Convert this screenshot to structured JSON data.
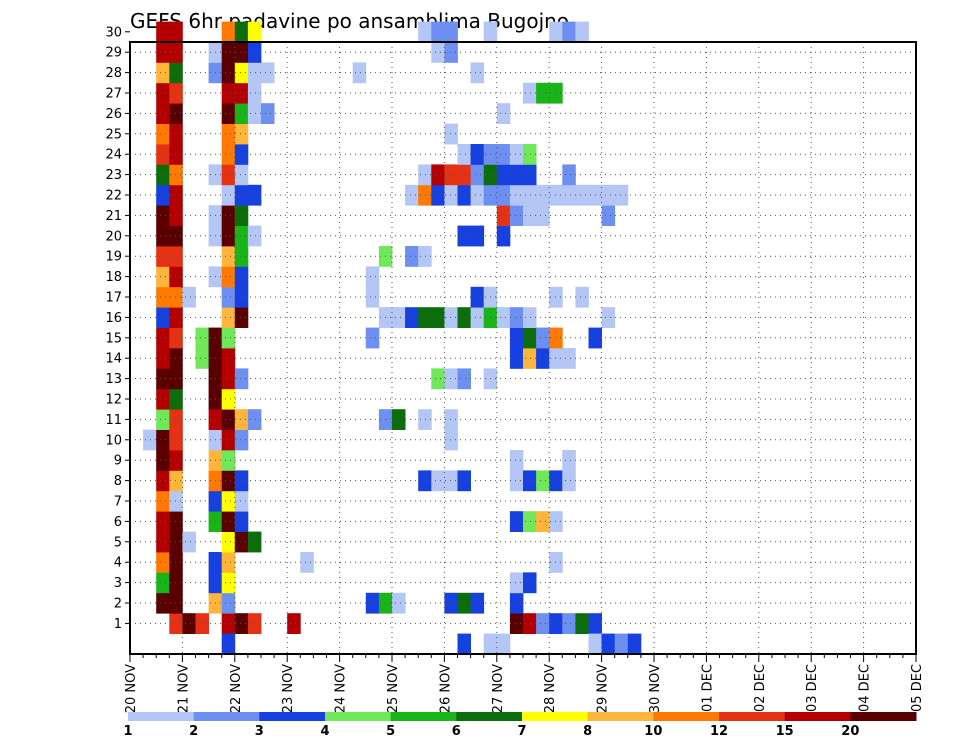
{
  "chart_data": {
    "type": "heatmap",
    "title": "GEFS 6hr padavine po ansamblima Bugojno",
    "x_tick_labels": [
      "20 NOV",
      "21 NOV",
      "22 NOV",
      "23 NOV",
      "24 NOV",
      "25 NOV",
      "26 NOV",
      "27 NOV",
      "28 NOV",
      "29 NOV",
      "30 NOV",
      "01 DEC",
      "02 DEC",
      "03 DEC",
      "04 DEC",
      "05 DEC"
    ],
    "y_tick_labels": [
      "1",
      "2",
      "3",
      "4",
      "5",
      "6",
      "7",
      "8",
      "9",
      "10",
      "11",
      "12",
      "13",
      "14",
      "15",
      "16",
      "17",
      "18",
      "19",
      "20",
      "21",
      "22",
      "23",
      "24",
      "25",
      "26",
      "27",
      "28",
      "29",
      "30"
    ],
    "x_range": [
      "20 NOV",
      "05 DEC"
    ],
    "y_range": [
      0,
      30
    ],
    "grid": true,
    "legend": {
      "placement": "bottom",
      "tick_labels": [
        "1",
        "2",
        "3",
        "4",
        "5",
        "6",
        "7",
        "8",
        "10",
        "12",
        "15",
        "20"
      ],
      "colors": [
        "#b4c6f5",
        "#6e8ff2",
        "#1640e0",
        "#6fe85a",
        "#18b418",
        "#0b6e0b",
        "#ffff00",
        "#ffb43c",
        "#ff7800",
        "#e63214",
        "#b40000",
        "#5a0000"
      ]
    },
    "series": [
      {
        "member": 1,
        "cells": [
          [
            3,
            10
          ],
          [
            4,
            12
          ],
          [
            5,
            10
          ],
          [
            7,
            11
          ],
          [
            8,
            12
          ],
          [
            9,
            10
          ],
          [
            12,
            11
          ],
          [
            29,
            12
          ],
          [
            30,
            11
          ],
          [
            31,
            2
          ],
          [
            32,
            3
          ],
          [
            33,
            2
          ],
          [
            34,
            6
          ],
          [
            35,
            3
          ]
        ]
      },
      {
        "member": 2,
        "cells": [
          [
            2,
            12
          ],
          [
            3,
            12
          ],
          [
            6,
            8
          ],
          [
            7,
            2
          ],
          [
            18,
            3
          ],
          [
            19,
            5
          ],
          [
            20,
            1
          ],
          [
            24,
            3
          ],
          [
            25,
            6
          ],
          [
            26,
            3
          ],
          [
            29,
            3
          ]
        ]
      },
      {
        "member": 3,
        "cells": [
          [
            2,
            5
          ],
          [
            3,
            12
          ],
          [
            6,
            3
          ],
          [
            7,
            7
          ],
          [
            29,
            1
          ],
          [
            30,
            3
          ]
        ]
      },
      {
        "member": 4,
        "cells": [
          [
            2,
            9
          ],
          [
            3,
            12
          ],
          [
            6,
            3
          ],
          [
            7,
            8
          ],
          [
            13,
            1
          ],
          [
            32,
            1
          ]
        ]
      },
      {
        "member": 5,
        "cells": [
          [
            2,
            11
          ],
          [
            3,
            12
          ],
          [
            4,
            1
          ],
          [
            7,
            7
          ],
          [
            8,
            12
          ],
          [
            9,
            6
          ]
        ]
      },
      {
        "member": 6,
        "cells": [
          [
            2,
            11
          ],
          [
            3,
            12
          ],
          [
            6,
            5
          ],
          [
            7,
            12
          ],
          [
            8,
            3
          ],
          [
            29,
            3
          ],
          [
            30,
            4
          ],
          [
            31,
            8
          ],
          [
            32,
            1
          ]
        ]
      },
      {
        "member": 7,
        "cells": [
          [
            2,
            9
          ],
          [
            3,
            1
          ],
          [
            6,
            3
          ],
          [
            7,
            7
          ],
          [
            8,
            1
          ]
        ]
      },
      {
        "member": 8,
        "cells": [
          [
            2,
            11
          ],
          [
            3,
            8
          ],
          [
            6,
            9
          ],
          [
            7,
            12
          ],
          [
            8,
            3
          ],
          [
            22,
            3
          ],
          [
            23,
            1
          ],
          [
            24,
            1
          ],
          [
            25,
            3
          ],
          [
            29,
            1
          ],
          [
            30,
            3
          ],
          [
            31,
            4
          ],
          [
            32,
            3
          ],
          [
            33,
            1
          ]
        ]
      },
      {
        "member": 9,
        "cells": [
          [
            2,
            12
          ],
          [
            3,
            11
          ],
          [
            6,
            8
          ],
          [
            7,
            4
          ],
          [
            29,
            1
          ],
          [
            33,
            1
          ]
        ]
      },
      {
        "member": 10,
        "cells": [
          [
            1,
            1
          ],
          [
            2,
            12
          ],
          [
            3,
            10
          ],
          [
            6,
            1
          ],
          [
            7,
            11
          ],
          [
            8,
            2
          ],
          [
            24,
            1
          ]
        ]
      },
      {
        "member": 11,
        "cells": [
          [
            2,
            4
          ],
          [
            3,
            10
          ],
          [
            6,
            11
          ],
          [
            7,
            12
          ],
          [
            8,
            8
          ],
          [
            9,
            2
          ],
          [
            19,
            2
          ],
          [
            20,
            6
          ],
          [
            22,
            1
          ],
          [
            24,
            1
          ]
        ]
      },
      {
        "member": 12,
        "cells": [
          [
            2,
            11
          ],
          [
            3,
            6
          ],
          [
            6,
            12
          ],
          [
            7,
            7
          ]
        ]
      },
      {
        "member": 13,
        "cells": [
          [
            2,
            12
          ],
          [
            3,
            12
          ],
          [
            6,
            12
          ],
          [
            7,
            11
          ],
          [
            8,
            2
          ],
          [
            23,
            4
          ],
          [
            24,
            1
          ],
          [
            25,
            2
          ],
          [
            27,
            1
          ]
        ]
      },
      {
        "member": 14,
        "cells": [
          [
            2,
            11
          ],
          [
            3,
            12
          ],
          [
            5,
            4
          ],
          [
            6,
            12
          ],
          [
            7,
            11
          ],
          [
            29,
            3
          ],
          [
            30,
            8
          ],
          [
            31,
            3
          ],
          [
            32,
            1
          ],
          [
            33,
            1
          ]
        ]
      },
      {
        "member": 15,
        "cells": [
          [
            2,
            11
          ],
          [
            3,
            10
          ],
          [
            5,
            4
          ],
          [
            6,
            12
          ],
          [
            7,
            4
          ],
          [
            18,
            2
          ],
          [
            29,
            3
          ],
          [
            30,
            6
          ],
          [
            31,
            2
          ],
          [
            32,
            9
          ],
          [
            35,
            3
          ]
        ]
      },
      {
        "member": 16,
        "cells": [
          [
            2,
            3
          ],
          [
            3,
            11
          ],
          [
            7,
            8
          ],
          [
            8,
            12
          ],
          [
            19,
            1
          ],
          [
            20,
            1
          ],
          [
            21,
            3
          ],
          [
            22,
            6
          ],
          [
            23,
            6
          ],
          [
            24,
            1
          ],
          [
            25,
            6
          ],
          [
            26,
            1
          ],
          [
            27,
            5
          ],
          [
            28,
            1
          ],
          [
            29,
            2
          ],
          [
            30,
            1
          ],
          [
            36,
            1
          ]
        ]
      },
      {
        "member": 17,
        "cells": [
          [
            2,
            9
          ],
          [
            3,
            9
          ],
          [
            4,
            1
          ],
          [
            7,
            2
          ],
          [
            8,
            3
          ],
          [
            18,
            1
          ],
          [
            26,
            3
          ],
          [
            27,
            1
          ],
          [
            32,
            1
          ],
          [
            34,
            1
          ]
        ]
      },
      {
        "member": 18,
        "cells": [
          [
            2,
            8
          ],
          [
            3,
            11
          ],
          [
            6,
            1
          ],
          [
            7,
            9
          ],
          [
            8,
            3
          ],
          [
            18,
            1
          ]
        ]
      },
      {
        "member": 19,
        "cells": [
          [
            2,
            10
          ],
          [
            3,
            10
          ],
          [
            7,
            8
          ],
          [
            8,
            5
          ],
          [
            19,
            4
          ],
          [
            21,
            2
          ],
          [
            22,
            1
          ]
        ]
      },
      {
        "member": 20,
        "cells": [
          [
            2,
            12
          ],
          [
            3,
            12
          ],
          [
            6,
            1
          ],
          [
            7,
            12
          ],
          [
            8,
            5
          ],
          [
            9,
            1
          ],
          [
            25,
            3
          ],
          [
            26,
            3
          ],
          [
            28,
            3
          ]
        ]
      },
      {
        "member": 21,
        "cells": [
          [
            2,
            12
          ],
          [
            3,
            11
          ],
          [
            6,
            1
          ],
          [
            7,
            12
          ],
          [
            8,
            6
          ],
          [
            28,
            10
          ],
          [
            29,
            2
          ],
          [
            30,
            1
          ],
          [
            31,
            1
          ],
          [
            36,
            2
          ]
        ]
      },
      {
        "member": 22,
        "cells": [
          [
            2,
            3
          ],
          [
            3,
            11
          ],
          [
            7,
            1
          ],
          [
            8,
            3
          ],
          [
            9,
            3
          ],
          [
            21,
            1
          ],
          [
            22,
            9
          ],
          [
            23,
            3
          ],
          [
            24,
            1
          ],
          [
            25,
            3
          ],
          [
            26,
            1
          ],
          [
            27,
            2
          ],
          [
            28,
            2
          ],
          [
            29,
            1
          ],
          [
            30,
            1
          ],
          [
            31,
            1
          ],
          [
            32,
            1
          ],
          [
            33,
            1
          ],
          [
            34,
            1
          ],
          [
            35,
            1
          ],
          [
            36,
            1
          ],
          [
            37,
            1
          ]
        ]
      },
      {
        "member": 23,
        "cells": [
          [
            2,
            6
          ],
          [
            3,
            9
          ],
          [
            6,
            1
          ],
          [
            7,
            10
          ],
          [
            8,
            1
          ],
          [
            22,
            1
          ],
          [
            23,
            11
          ],
          [
            24,
            10
          ],
          [
            25,
            10
          ],
          [
            26,
            2
          ],
          [
            27,
            6
          ],
          [
            28,
            3
          ],
          [
            29,
            3
          ],
          [
            30,
            3
          ],
          [
            33,
            2
          ]
        ]
      },
      {
        "member": 24,
        "cells": [
          [
            2,
            10
          ],
          [
            3,
            11
          ],
          [
            7,
            9
          ],
          [
            8,
            3
          ],
          [
            25,
            1
          ],
          [
            26,
            3
          ],
          [
            27,
            2
          ],
          [
            28,
            2
          ],
          [
            29,
            1
          ],
          [
            30,
            4
          ]
        ]
      },
      {
        "member": 25,
        "cells": [
          [
            2,
            9
          ],
          [
            3,
            11
          ],
          [
            7,
            9
          ],
          [
            8,
            8
          ],
          [
            24,
            1
          ]
        ]
      },
      {
        "member": 26,
        "cells": [
          [
            2,
            11
          ],
          [
            3,
            12
          ],
          [
            7,
            12
          ],
          [
            8,
            5
          ],
          [
            9,
            1
          ],
          [
            10,
            2
          ],
          [
            28,
            1
          ]
        ]
      },
      {
        "member": 27,
        "cells": [
          [
            2,
            11
          ],
          [
            3,
            10
          ],
          [
            7,
            11
          ],
          [
            8,
            11
          ],
          [
            9,
            1
          ],
          [
            30,
            1
          ],
          [
            31,
            5
          ],
          [
            32,
            5
          ]
        ]
      },
      {
        "member": 28,
        "cells": [
          [
            2,
            8
          ],
          [
            3,
            6
          ],
          [
            6,
            2
          ],
          [
            7,
            12
          ],
          [
            8,
            7
          ],
          [
            9,
            1
          ],
          [
            10,
            1
          ],
          [
            17,
            1
          ],
          [
            26,
            1
          ]
        ]
      },
      {
        "member": 29,
        "cells": [
          [
            2,
            11
          ],
          [
            3,
            11
          ],
          [
            6,
            1
          ],
          [
            7,
            12
          ],
          [
            8,
            12
          ],
          [
            9,
            3
          ],
          [
            23,
            1
          ],
          [
            24,
            2
          ]
        ]
      },
      {
        "member": 30,
        "cells": [
          [
            2,
            11
          ],
          [
            3,
            11
          ],
          [
            7,
            9
          ],
          [
            8,
            6
          ],
          [
            9,
            7
          ],
          [
            22,
            1
          ],
          [
            23,
            2
          ],
          [
            24,
            2
          ],
          [
            27,
            1
          ],
          [
            32,
            1
          ],
          [
            33,
            2
          ],
          [
            34,
            1
          ]
        ]
      },
      {
        "member": 0,
        "cells": [
          [
            7,
            3
          ],
          [
            25,
            3
          ],
          [
            27,
            1
          ],
          [
            28,
            1
          ],
          [
            35,
            1
          ],
          [
            36,
            3
          ],
          [
            37,
            2
          ],
          [
            38,
            3
          ]
        ]
      }
    ]
  }
}
